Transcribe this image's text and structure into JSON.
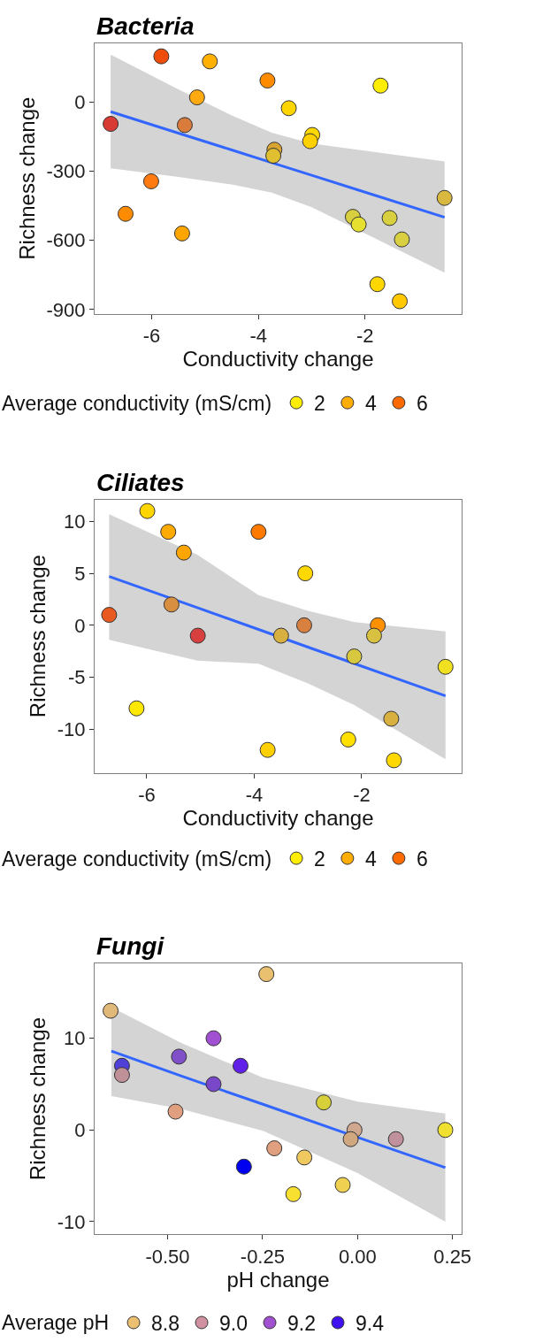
{
  "chart_data": [
    {
      "type": "scatter",
      "title": "Bacteria",
      "xlabel": "Conductivity change",
      "ylabel": "Richness change",
      "legend_title": "Average conductivity (mS/cm)",
      "legend": "bottom",
      "grid": false,
      "xlim": [
        -7.07,
        -0.19
      ],
      "xticks": [
        -6,
        -4,
        -2
      ],
      "ylim": [
        -918,
        255
      ],
      "yticks": [
        -900,
        -600,
        -300,
        0
      ],
      "series": [
        {
          "type": "line",
          "marker": "none",
          "color": "#3366ff",
          "x": [
            -6.77,
            -5.5,
            -4.5,
            -3.75,
            -3,
            -2,
            -0.51
          ],
          "values": [
            -42,
            -135,
            -208,
            -263,
            -318,
            -391,
            -500
          ],
          "lower": [
            -288,
            -325,
            -358,
            -393,
            -456,
            -571,
            -740
          ],
          "upper": [
            205,
            55,
            -58,
            -133,
            -180,
            -211,
            -258
          ]
        },
        {
          "marker": "circle",
          "x": [
            -6.77,
            -5.82,
            -4.91,
            -3.83,
            -1.71,
            -5.15,
            -3.43,
            -5.38,
            -2.99,
            -3.03,
            -3.7,
            -3.72,
            -6.01,
            -6.49,
            -5.43,
            -0.51,
            -2.23,
            -2.12,
            -1.54,
            -1.31,
            -1.77,
            -1.35
          ],
          "values": [
            -95,
            198,
            176,
            93,
            71,
            20,
            -27,
            -100,
            -143,
            -170,
            -207,
            -233,
            -344,
            -485,
            -570,
            -416,
            -498,
            -531,
            -503,
            -596,
            -790,
            -864
          ],
          "colors": [
            "#d83b33",
            "#f04c0a",
            "#ffb000",
            "#ff8c00",
            "#ffee00",
            "#ffaa10",
            "#ffd500",
            "#d97b3a",
            "#ffd700",
            "#ffd000",
            "#d9a530",
            "#e0c030",
            "#ff7a10",
            "#ff8c00",
            "#ffa500",
            "#d9b840",
            "#d8cf40",
            "#e6e030",
            "#d8d040",
            "#d8d040",
            "#ffd700",
            "#ffc800"
          ]
        },
        {
          "marker": "circle",
          "name": "2",
          "color": "#ffee00"
        },
        {
          "marker": "circle",
          "name": "4",
          "color": "#ffad00"
        },
        {
          "marker": "circle",
          "name": "6",
          "color": "#ff6a00"
        }
      ]
    },
    {
      "type": "scatter",
      "title": "Ciliates",
      "xlabel": "Conductivity change",
      "ylabel": "Richness change",
      "legend_title": "Average conductivity (mS/cm)",
      "legend": "bottom",
      "grid": false,
      "xlim": [
        -6.97,
        -0.14
      ],
      "xticks": [
        -6,
        -4,
        -2
      ],
      "ylim": [
        -14.2,
        12.1
      ],
      "yticks": [
        -10,
        -5,
        0,
        5,
        10
      ],
      "series": [
        {
          "type": "line",
          "marker": "none",
          "color": "#3366ff",
          "x": [
            -6.7,
            -5.06,
            -3.92,
            -3,
            -2.13,
            -0.44
          ],
          "values": [
            4.7,
            1.7,
            -0.4,
            -2.1,
            -3.7,
            -6.8
          ],
          "lower": [
            -1.4,
            -3.4,
            -3.7,
            -5.6,
            -7.7,
            -12.9
          ],
          "upper": [
            10.7,
            6.8,
            2.9,
            1.4,
            0.3,
            -0.6
          ]
        },
        {
          "marker": "circle",
          "x": [
            -6.7,
            -5.99,
            -5.6,
            -5.31,
            -3.92,
            -3.05,
            -5.54,
            -5.05,
            -3.5,
            -3.07,
            -1.7,
            -1.77,
            -2.14,
            -0.44,
            -6.19,
            -3.75,
            -2.25,
            -1.45,
            -1.4
          ],
          "values": [
            1,
            11,
            9,
            7,
            9,
            5,
            2,
            -1,
            -1,
            0,
            0,
            -1,
            -3,
            -4,
            -8,
            -12,
            -11,
            -9,
            -13
          ],
          "colors": [
            "#e85a20",
            "#ffd500",
            "#ffaa00",
            "#ffa500",
            "#ff7a00",
            "#ffd800",
            "#d89040",
            "#d84040",
            "#d8b040",
            "#d88040",
            "#ff9000",
            "#d8c040",
            "#d8c840",
            "#f0e020",
            "#ffe800",
            "#ffd000",
            "#ffe000",
            "#d8b040",
            "#ffd800"
          ]
        },
        {
          "marker": "circle",
          "name": "2",
          "color": "#ffee00"
        },
        {
          "marker": "circle",
          "name": "4",
          "color": "#ffad00"
        },
        {
          "marker": "circle",
          "name": "6",
          "color": "#ff6a00"
        }
      ]
    },
    {
      "type": "scatter",
      "title": "Fungi",
      "xlabel": "pH change",
      "ylabel": "Richness change",
      "legend_title": "Average pH",
      "legend": "bottom",
      "grid": false,
      "xlim": [
        -0.692,
        0.274
      ],
      "xticks": [
        {
          "value": -0.5,
          "label": "-0.50"
        },
        {
          "value": -0.25,
          "label": "-0.25"
        },
        {
          "value": 0,
          "label": "0.00"
        },
        {
          "value": 0.25,
          "label": "0.25"
        }
      ],
      "ylim": [
        -11.4,
        18.2
      ],
      "yticks": [
        -10,
        0,
        10
      ],
      "series": [
        {
          "type": "line",
          "marker": "none",
          "color": "#3366ff",
          "x": [
            -0.648,
            -0.465,
            -0.249,
            0,
            0.231
          ],
          "values": [
            8.6,
            5.9,
            2.8,
            -0.8,
            -4.1
          ],
          "lower": [
            3.7,
            2.3,
            -0.1,
            -4.7,
            -10
          ],
          "upper": [
            13.4,
            9.5,
            5.7,
            3.1,
            1.8
          ]
        },
        {
          "marker": "circle",
          "x": [
            -0.24,
            -0.65,
            -0.379,
            -0.47,
            -0.308,
            -0.62,
            -0.62,
            -0.379,
            -0.089,
            -0.479,
            -0.008,
            -0.018,
            0.101,
            0.231,
            -0.219,
            -0.14,
            -0.299,
            -0.039,
            -0.169
          ],
          "values": [
            17,
            13,
            10,
            8,
            7,
            7,
            6,
            5,
            3,
            2,
            0,
            -1,
            -1,
            0,
            -2,
            -3,
            -4,
            -6,
            -7
          ],
          "colors": [
            "#e8c070",
            "#e0b878",
            "#a050d0",
            "#8050c8",
            "#6020e8",
            "#5040d8",
            "#c09098",
            "#7848c8",
            "#d8d038",
            "#e0a080",
            "#d0a890",
            "#d0a880",
            "#c0909c",
            "#f0e030",
            "#e0a080",
            "#f0c860",
            "#0000f0",
            "#f0d050",
            "#f8e030"
          ]
        },
        {
          "marker": "circle",
          "name": "8.8",
          "color": "#ecc070"
        },
        {
          "marker": "circle",
          "name": "9.0",
          "color": "#d090a0"
        },
        {
          "marker": "circle",
          "name": "9.2",
          "color": "#a050d0"
        },
        {
          "marker": "circle",
          "name": "9.4",
          "color": "#4010f0"
        }
      ]
    }
  ]
}
